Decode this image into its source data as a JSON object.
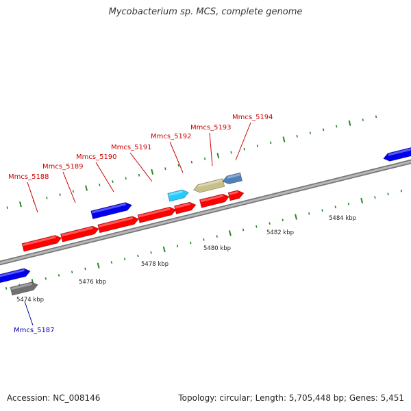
{
  "title": "Mycobacterium sp. MCS, complete genome",
  "footer": {
    "accession": "Accession: NC_008146",
    "info": "Topology: circular; Length: 5,705,448 bp; Genes: 5,451"
  },
  "colors": {
    "red": "#ff0000",
    "blue": "#0000ee",
    "cyan": "#22ccff",
    "khaki": "#c8c088",
    "steel": "#5080b8",
    "gray": "#707070",
    "backbone": "#999999",
    "tick": "#228822",
    "label_red": "#cc0000",
    "label_blue": "#0000aa"
  },
  "scale_labels": [
    "5474 kbp",
    "5476 kbp",
    "5478 kbp",
    "5480 kbp",
    "5482 kbp",
    "5484 kbp"
  ],
  "gene_labels": [
    {
      "text": "Mmcs_5187",
      "color": "label_blue"
    },
    {
      "text": "Mmcs_5188",
      "color": "label_red"
    },
    {
      "text": "Mmcs_5189",
      "color": "label_red"
    },
    {
      "text": "Mmcs_5190",
      "color": "label_red"
    },
    {
      "text": "Mmcs_5191",
      "color": "label_red"
    },
    {
      "text": "Mmcs_5192",
      "color": "label_red"
    },
    {
      "text": "Mmcs_5193",
      "color": "label_red"
    },
    {
      "text": "Mmcs_5194",
      "color": "label_red"
    }
  ]
}
